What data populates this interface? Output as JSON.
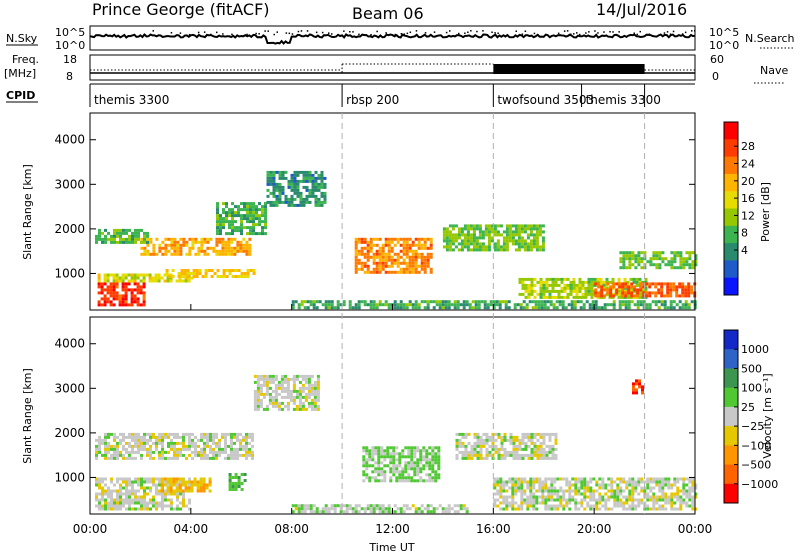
{
  "header": {
    "station": "Prince George (fitACF)",
    "beam": "Beam 06",
    "date": "14/Jul/2016"
  },
  "top_panel": {
    "left_label": "N.Sky",
    "right_label": "N.Search",
    "left_ticks": [
      "10^5",
      "10^0"
    ],
    "right_ticks": [
      "10^5",
      "10^0"
    ]
  },
  "freq_panel": {
    "left_label_line1": "Freq.",
    "left_label_line2": "[MHz]",
    "right_label": "Nave",
    "left_ticks": [
      "18",
      "8"
    ],
    "right_ticks": [
      "60",
      "0"
    ]
  },
  "cpid_panel": {
    "label": "CPID",
    "segments": [
      {
        "name": "themis 3300",
        "start_hr": 0,
        "end_hr": 10
      },
      {
        "name": "rbsp 200",
        "start_hr": 10,
        "end_hr": 16
      },
      {
        "name": "twofsound 3503",
        "start_hr": 16,
        "end_hr": 22
      },
      {
        "name": "themis 3300",
        "start_hr": 19.5,
        "end_hr": 22
      }
    ]
  },
  "power_colorbar": {
    "title": "Power [dB]",
    "tick_labels": [
      "28",
      "24",
      "20",
      "16",
      "12",
      "8",
      "4"
    ],
    "colors": [
      "#ff0000",
      "#ff3c00",
      "#ff7800",
      "#ffb400",
      "#e6dc00",
      "#96c800",
      "#3cb450",
      "#2a8a6e",
      "#1e5ac8",
      "#0a14ff"
    ]
  },
  "velocity_colorbar": {
    "title": "Velocity [m s⁻¹]",
    "tick_labels": [
      "1000",
      "500",
      "100",
      "25",
      "−25",
      "−100",
      "−500",
      "−1000"
    ],
    "colors": [
      "#1428c8",
      "#2e64c8",
      "#3c9650",
      "#50c832",
      "#c8c8c8",
      "#e6c800",
      "#ff9600",
      "#ff6400",
      "#ff0000"
    ]
  },
  "chart_data": {
    "type": "heatmap",
    "title": "Prince George (fitACF)  Beam 06  14/Jul/2016",
    "xlabel": "Time UT",
    "ylabel": "Slant Range [km]",
    "x_tick_labels": [
      "00:00",
      "04:00",
      "08:00",
      "12:00",
      "16:00",
      "20:00",
      "00:00"
    ],
    "x_tick_hours": [
      0,
      4,
      8,
      12,
      16,
      20,
      24
    ],
    "xlim_hours": [
      0,
      24
    ],
    "y_tick_values": [
      1000,
      2000,
      3000,
      4000
    ],
    "ylim_km": [
      180,
      4600
    ],
    "cpid_change_hours": [
      10,
      16,
      22
    ],
    "panels": [
      {
        "quantity": "Power",
        "unit": "dB",
        "range": [
          0,
          30
        ],
        "regions": [
          {
            "t0": 0.3,
            "t1": 2.2,
            "r0": 300,
            "r1": 800,
            "value": 26
          },
          {
            "t0": 2.0,
            "t1": 6.3,
            "r0": 1400,
            "r1": 1800,
            "value": 20
          },
          {
            "t0": 0.2,
            "t1": 2.3,
            "r0": 1700,
            "r1": 2000,
            "value": 11
          },
          {
            "t0": 0.3,
            "t1": 4.0,
            "r0": 800,
            "r1": 1000,
            "value": 16
          },
          {
            "t0": 5.0,
            "t1": 7.0,
            "r0": 1900,
            "r1": 2600,
            "value": 10
          },
          {
            "t0": 7.0,
            "t1": 9.3,
            "r0": 2500,
            "r1": 3300,
            "value": 8
          },
          {
            "t0": 3.0,
            "t1": 6.5,
            "r0": 900,
            "r1": 1100,
            "value": 18
          },
          {
            "t0": 10.5,
            "t1": 13.5,
            "r0": 1000,
            "r1": 1800,
            "value": 22
          },
          {
            "t0": 14.0,
            "t1": 18.0,
            "r0": 1500,
            "r1": 2100,
            "value": 12
          },
          {
            "t0": 8.0,
            "t1": 24.0,
            "r0": 250,
            "r1": 400,
            "value": 10
          },
          {
            "t0": 17.0,
            "t1": 22.0,
            "r0": 450,
            "r1": 900,
            "value": 14
          },
          {
            "t0": 20.0,
            "t1": 24.0,
            "r0": 500,
            "r1": 800,
            "value": 24
          },
          {
            "t0": 21.0,
            "t1": 24.0,
            "r0": 1100,
            "r1": 1500,
            "value": 12
          }
        ]
      },
      {
        "quantity": "Velocity",
        "unit": "m s⁻¹",
        "range": [
          -1000,
          1000
        ],
        "regions": [
          {
            "t0": 0.2,
            "t1": 4.0,
            "r0": 300,
            "r1": 1000,
            "value": 0
          },
          {
            "t0": 0.2,
            "t1": 6.5,
            "r0": 1400,
            "r1": 2000,
            "value": 0
          },
          {
            "t0": 2.8,
            "t1": 4.8,
            "r0": 700,
            "r1": 1000,
            "value": -300
          },
          {
            "t0": 5.5,
            "t1": 6.2,
            "r0": 700,
            "r1": 1100,
            "value": 300
          },
          {
            "t0": 6.5,
            "t1": 9.0,
            "r0": 2500,
            "r1": 3300,
            "value": 0
          },
          {
            "t0": 10.8,
            "t1": 13.8,
            "r0": 900,
            "r1": 1700,
            "value": 150
          },
          {
            "t0": 8.0,
            "t1": 15.0,
            "r0": 200,
            "r1": 400,
            "value": 60
          },
          {
            "t0": 14.5,
            "t1": 18.5,
            "r0": 1400,
            "r1": 2000,
            "value": 0
          },
          {
            "t0": 16.0,
            "t1": 24.0,
            "r0": 300,
            "r1": 1000,
            "value": 0
          },
          {
            "t0": 21.5,
            "t1": 21.9,
            "r0": 2900,
            "r1": 3200,
            "value": -800
          }
        ]
      }
    ]
  }
}
